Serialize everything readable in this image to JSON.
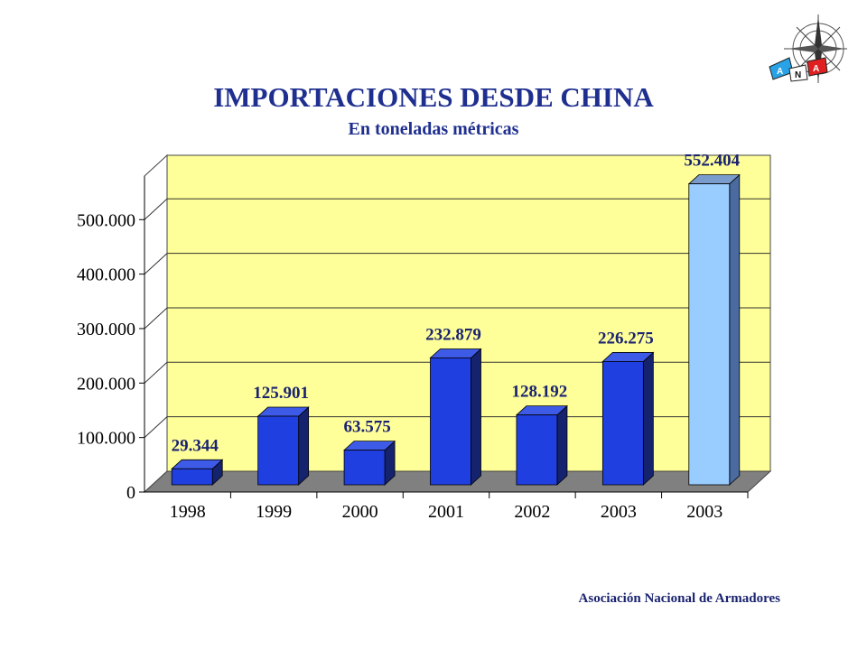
{
  "header": {
    "title": "IMPORTACIONES DESDE CHINA",
    "subtitle": "En toneladas métricas"
  },
  "footer": {
    "text": "Asociación Nacional de Armadores"
  },
  "logo": {
    "letters": [
      "A",
      "N",
      "A"
    ]
  },
  "colors": {
    "title": "#1f2f8f",
    "plot_back": "#ffff99",
    "floor": "#808080",
    "bar": "#1f3fe0",
    "bar_highlight": "#99ccff",
    "value_label": "#1a2370"
  },
  "chart_data": {
    "type": "bar",
    "title": "IMPORTACIONES DESDE CHINA",
    "subtitle": "En toneladas métricas",
    "categories": [
      "1998",
      "1999",
      "2000",
      "2001",
      "2002",
      "2003",
      "2003"
    ],
    "values": [
      29344,
      125901,
      63575,
      232879,
      128192,
      226275,
      552404
    ],
    "value_labels": [
      "29.344",
      "125.901",
      "63.575",
      "232.879",
      "128.192",
      "226.275",
      "552.404"
    ],
    "highlight_index": 6,
    "yticks": [
      0,
      100000,
      200000,
      300000,
      400000,
      500000
    ],
    "ytick_labels": [
      "0",
      "100.000",
      "200.000",
      "300.000",
      "400.000",
      "500.000"
    ],
    "ylim": [
      0,
      580000
    ],
    "grid": true,
    "legend": "none",
    "three_d": true
  }
}
